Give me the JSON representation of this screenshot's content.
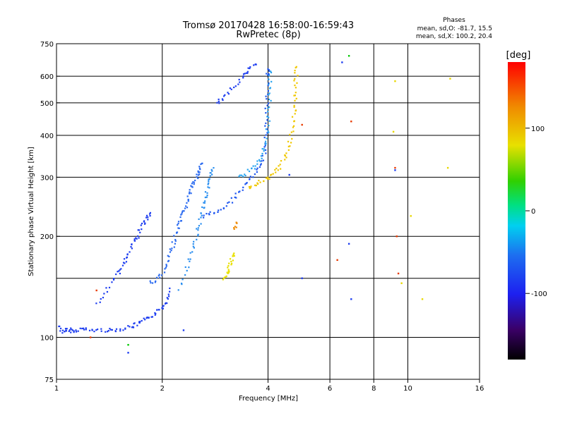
{
  "header": {
    "title_line1": "Tromsø 20170428 16:58:00-16:59:43",
    "title_line2": "RwPretec (8p)"
  },
  "phase_box": {
    "title": "Phases",
    "line1": "mean, sd,O: -81.7, 15.5",
    "line2": "mean, sd,X: 100.2, 20.4"
  },
  "colorbar": {
    "unit_label": "[deg]",
    "ticks": [
      "100",
      "0",
      "-100"
    ],
    "range": [
      -180,
      180
    ],
    "tick_values": [
      100,
      0,
      -100
    ]
  },
  "chart_data": {
    "type": "scatter",
    "xlabel": "Frequency [MHz]",
    "ylabel": "Stationary phase Virtual Height [km]",
    "x_scale": "log",
    "y_scale": "log",
    "xlim": [
      1,
      16
    ],
    "ylim": [
      75,
      750
    ],
    "grid": true,
    "x_ticks": [
      "1",
      "2",
      "4",
      "6",
      "8",
      "10",
      "16"
    ],
    "y_ticks": [
      "750",
      "600",
      "500",
      "400",
      "300",
      "200",
      "100",
      "75"
    ],
    "x_tick_values": [
      1,
      2,
      4,
      6,
      8,
      10,
      16
    ],
    "y_tick_values": [
      750,
      600,
      500,
      400,
      300,
      200,
      100,
      75
    ],
    "x_grid_values": [
      2,
      4,
      6,
      8,
      10
    ],
    "y_grid_values": [
      100,
      150,
      200,
      300,
      400,
      500,
      600
    ],
    "traces": [
      {
        "mode": "O",
        "phase_deg": -95,
        "color": "#1d3df0",
        "points": [
          [
            1.02,
            108
          ],
          [
            1.05,
            103
          ],
          [
            1.08,
            106
          ],
          [
            1.12,
            104
          ],
          [
            1.18,
            106
          ],
          [
            1.25,
            105
          ],
          [
            1.35,
            105
          ],
          [
            1.45,
            105
          ],
          [
            1.55,
            106
          ],
          [
            1.65,
            108
          ],
          [
            1.72,
            110
          ],
          [
            1.8,
            113
          ],
          [
            1.9,
            117
          ],
          [
            2.0,
            122
          ],
          [
            2.05,
            128
          ],
          [
            2.1,
            140
          ]
        ]
      },
      {
        "mode": "O",
        "phase_deg": -100,
        "color": "#1d3df0",
        "points": [
          [
            1.3,
            125
          ],
          [
            1.4,
            140
          ],
          [
            1.5,
            155
          ],
          [
            1.55,
            165
          ],
          [
            1.6,
            175
          ],
          [
            1.65,
            190
          ],
          [
            1.7,
            200
          ],
          [
            1.75,
            215
          ],
          [
            1.8,
            225
          ],
          [
            1.85,
            235
          ]
        ]
      },
      {
        "mode": "O",
        "phase_deg": -90,
        "color": "#2a6af0",
        "points": [
          [
            1.85,
            145
          ],
          [
            1.95,
            150
          ],
          [
            2.05,
            160
          ],
          [
            2.1,
            175
          ],
          [
            2.15,
            190
          ],
          [
            2.2,
            205
          ],
          [
            2.25,
            220
          ],
          [
            2.3,
            235
          ],
          [
            2.35,
            250
          ],
          [
            2.4,
            270
          ],
          [
            2.45,
            285
          ],
          [
            2.5,
            300
          ],
          [
            2.55,
            315
          ],
          [
            2.6,
            330
          ]
        ]
      },
      {
        "mode": "O",
        "phase_deg": -80,
        "color": "#2a8ff0",
        "points": [
          [
            2.25,
            140
          ],
          [
            2.35,
            160
          ],
          [
            2.45,
            180
          ],
          [
            2.5,
            200
          ],
          [
            2.55,
            220
          ],
          [
            2.6,
            240
          ],
          [
            2.65,
            260
          ],
          [
            2.7,
            280
          ],
          [
            2.75,
            300
          ],
          [
            2.8,
            320
          ]
        ]
      },
      {
        "mode": "O",
        "phase_deg": -85,
        "color": "#1d55f0",
        "points": [
          [
            2.6,
            230
          ],
          [
            2.8,
            235
          ],
          [
            3.0,
            245
          ],
          [
            3.2,
            260
          ],
          [
            3.4,
            280
          ],
          [
            3.6,
            300
          ],
          [
            3.8,
            320
          ],
          [
            3.9,
            350
          ],
          [
            3.95,
            400
          ],
          [
            3.97,
            460
          ],
          [
            3.98,
            520
          ],
          [
            3.99,
            600
          ],
          [
            4.0,
            630
          ]
        ]
      },
      {
        "mode": "O",
        "phase_deg": -75,
        "color": "#2aa5f0",
        "points": [
          [
            3.3,
            300
          ],
          [
            3.5,
            310
          ],
          [
            3.7,
            325
          ],
          [
            3.85,
            345
          ],
          [
            3.95,
            380
          ],
          [
            4.0,
            430
          ],
          [
            4.03,
            490
          ],
          [
            4.05,
            560
          ],
          [
            4.07,
            620
          ]
        ]
      },
      {
        "mode": "O",
        "phase_deg": -100,
        "color": "#1d3df0",
        "points": [
          [
            2.85,
            500
          ],
          [
            3.0,
            520
          ],
          [
            3.2,
            560
          ],
          [
            3.4,
            600
          ],
          [
            3.55,
            630
          ],
          [
            3.7,
            650
          ]
        ]
      },
      {
        "mode": "X",
        "phase_deg": 110,
        "color": "#f0c800",
        "points": [
          [
            3.5,
            280
          ],
          [
            3.7,
            285
          ],
          [
            3.9,
            295
          ],
          [
            4.1,
            305
          ],
          [
            4.3,
            320
          ],
          [
            4.5,
            345
          ],
          [
            4.6,
            380
          ],
          [
            4.7,
            420
          ],
          [
            4.75,
            470
          ],
          [
            4.78,
            520
          ],
          [
            4.8,
            580
          ],
          [
            4.82,
            640
          ]
        ]
      },
      {
        "mode": "X",
        "phase_deg": 115,
        "color": "#e8e000",
        "points": [
          [
            3.0,
            150
          ],
          [
            3.05,
            155
          ],
          [
            3.1,
            160
          ],
          [
            3.15,
            170
          ],
          [
            3.2,
            178
          ]
        ]
      },
      {
        "mode": "X",
        "phase_deg": 140,
        "color": "#f08a00",
        "points": [
          [
            3.2,
            210
          ],
          [
            3.25,
            220
          ]
        ]
      },
      {
        "mode": "scatter",
        "phase_deg": 0,
        "color": "#00c800",
        "points": [
          [
            6.8,
            690
          ],
          [
            1.6,
            95
          ]
        ]
      },
      {
        "mode": "scatter",
        "phase_deg": 120,
        "color": "#e8d800",
        "points": [
          [
            9.2,
            580
          ],
          [
            9.1,
            410
          ],
          [
            10.2,
            230
          ],
          [
            9.6,
            145
          ],
          [
            11.0,
            130
          ],
          [
            13.0,
            320
          ],
          [
            13.2,
            590
          ]
        ]
      },
      {
        "mode": "scatter",
        "phase_deg": 160,
        "color": "#e83a00",
        "points": [
          [
            5.0,
            430
          ],
          [
            6.3,
            170
          ],
          [
            6.9,
            440
          ],
          [
            9.3,
            200
          ],
          [
            9.4,
            155
          ],
          [
            9.2,
            320
          ],
          [
            1.3,
            138
          ],
          [
            1.25,
            100
          ]
        ]
      },
      {
        "mode": "scatter",
        "phase_deg": -110,
        "color": "#1d3df0",
        "points": [
          [
            4.6,
            305
          ],
          [
            6.5,
            660
          ],
          [
            6.8,
            190
          ],
          [
            6.9,
            130
          ],
          [
            5.0,
            150
          ],
          [
            9.2,
            315
          ],
          [
            2.3,
            105
          ],
          [
            1.6,
            90
          ]
        ]
      }
    ]
  }
}
